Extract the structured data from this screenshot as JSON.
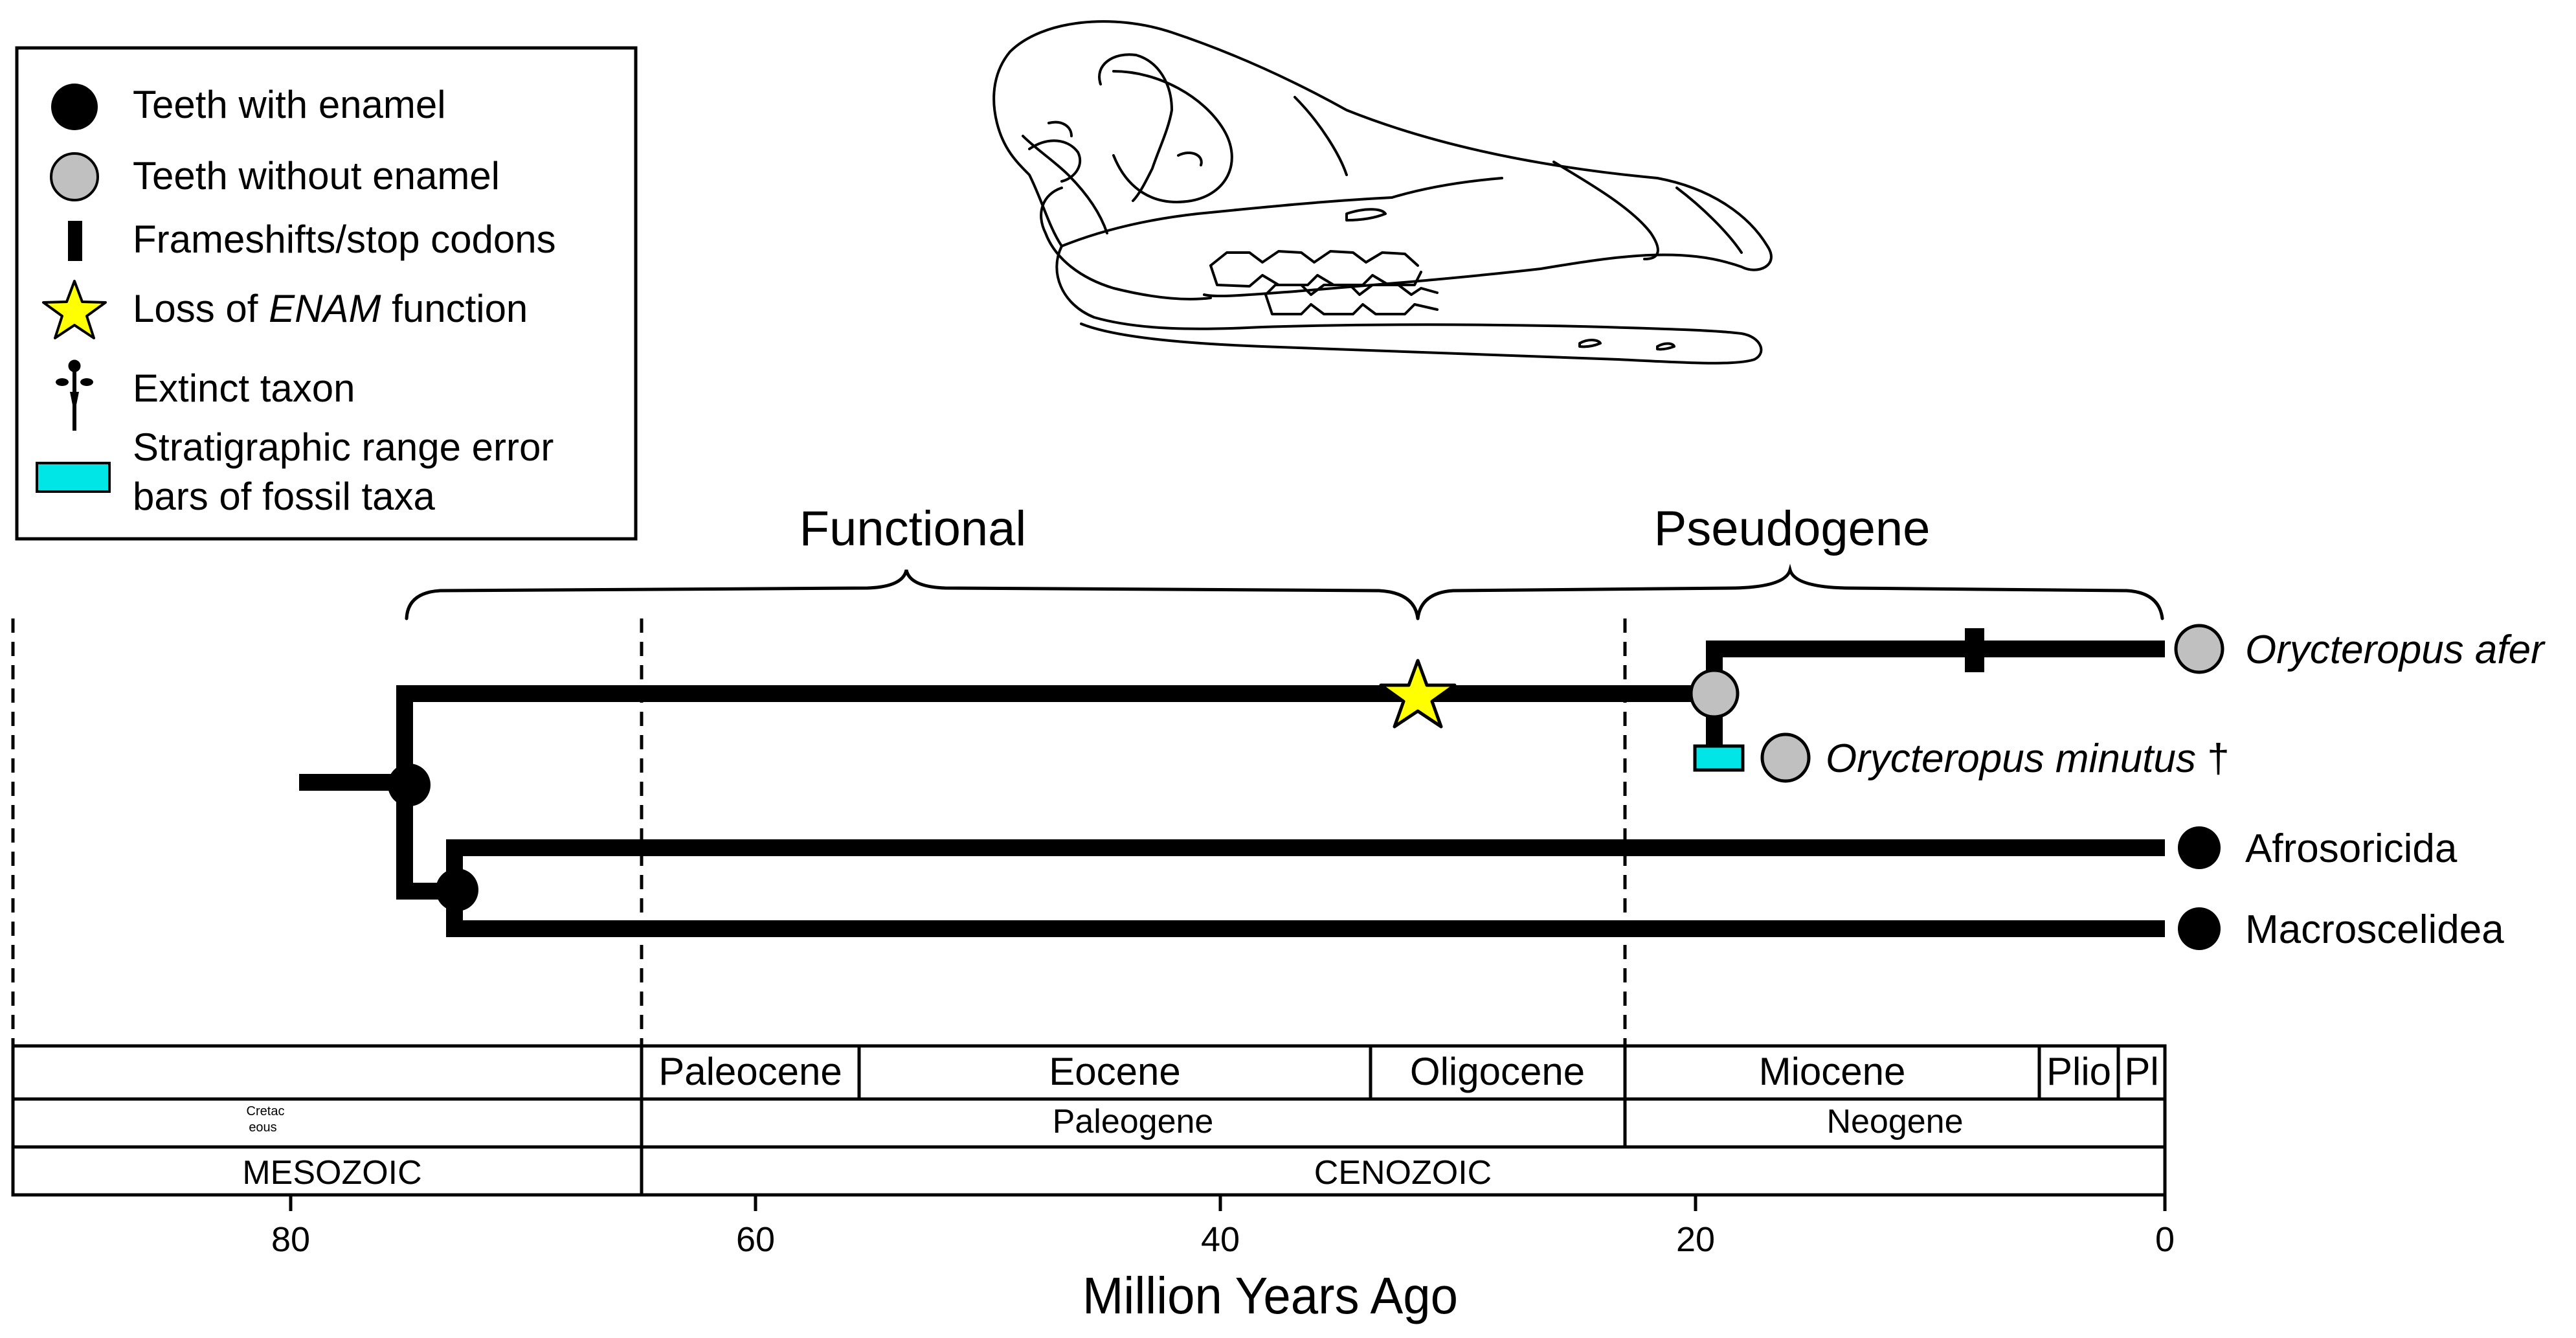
{
  "legend": {
    "items": [
      {
        "symbol": "black-circle",
        "label": "Teeth with enamel"
      },
      {
        "symbol": "gray-circle",
        "label": "Teeth without enamel"
      },
      {
        "symbol": "black-bar",
        "label": "Frameshifts/stop codons"
      },
      {
        "symbol": "yellow-star",
        "label_pre": "Loss of ",
        "label_em": "ENAM",
        "label_post": " function"
      },
      {
        "symbol": "dagger",
        "label": "Extinct taxon"
      },
      {
        "symbol": "cyan-box",
        "label_line1": "Stratigraphic range error",
        "label_line2": "bars of fossil taxa"
      }
    ]
  },
  "brackets": {
    "functional": "Functional",
    "pseudogene": "Pseudogene"
  },
  "taxa": {
    "orycteropus_afer": "Orycteropus afer",
    "orycteropus_minutus": "Orycteropus minutus",
    "dagger_symbol": "†",
    "afrosoricida": "Afrosoricida",
    "macroscelidea": "Macroscelidea"
  },
  "timescale": {
    "epochs": {
      "paleocene": "Paleocene",
      "eocene": "Eocene",
      "oligocene": "Oligocene",
      "miocene": "Miocene",
      "plio": "Plio",
      "pl": "Pl"
    },
    "periods": {
      "cretaceous_line1": "Cretac",
      "cretaceous_line2": "eous",
      "paleogene": "Paleogene",
      "neogene": "Neogene"
    },
    "eras": {
      "mesozoic": "MESOZOIC",
      "cenozoic": "CENOZOIC"
    }
  },
  "axis": {
    "ticks": [
      "80",
      "60",
      "40",
      "20",
      "0"
    ],
    "label": "Million Years Ago"
  },
  "colors": {
    "black": "#000000",
    "gray_fill": "#c0c0c0",
    "star_fill": "#ffff00",
    "cyan_fill": "#00e5e5"
  },
  "icons": {
    "illustration": "aardvark-skull-drawing",
    "extinct_marker": "dagger-icon"
  }
}
